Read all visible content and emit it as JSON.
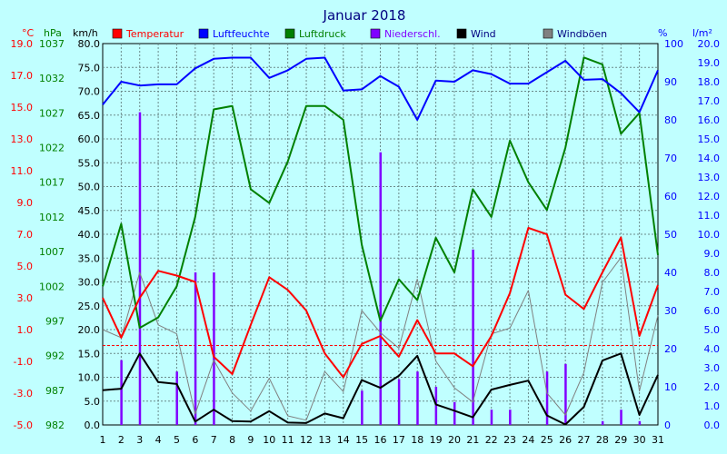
{
  "chart_data": {
    "type": "line",
    "title": "Januar 2018",
    "x": [
      1,
      2,
      3,
      4,
      5,
      6,
      7,
      8,
      9,
      10,
      11,
      12,
      13,
      14,
      15,
      16,
      17,
      18,
      19,
      20,
      21,
      22,
      23,
      24,
      25,
      26,
      27,
      28,
      29,
      30,
      31
    ],
    "axes": {
      "temp": {
        "unit": "°C",
        "ticks": [
          "19.0",
          "17.0",
          "15.0",
          "13.0",
          "11.0",
          "9.0",
          "7.0",
          "5.0",
          "3.0",
          "1.0",
          "-1.0",
          "-3.0",
          "-5.0"
        ],
        "color": "#ff0000"
      },
      "pressure": {
        "unit": "hPa",
        "ticks": [
          "1037",
          "1032",
          "1027",
          "1022",
          "1017",
          "1012",
          "1007",
          "1002",
          "997",
          "992",
          "987",
          "982"
        ],
        "color": "#008000"
      },
      "wind": {
        "unit": "km/h",
        "ticks": [
          "80.0",
          "75.0",
          "70.0",
          "65.0",
          "60.0",
          "55.0",
          "50.0",
          "45.0",
          "40.0",
          "35.0",
          "30.0",
          "25.0",
          "20.0",
          "15.0",
          "10.0",
          "5.0",
          "0.0"
        ],
        "ylim": [
          0,
          80
        ]
      },
      "humidity": {
        "unit": "%",
        "ticks": [
          "100",
          "90",
          "80",
          "70",
          "60",
          "50",
          "40",
          "30",
          "20",
          "10",
          "0"
        ],
        "color": "#0000ff"
      },
      "precip": {
        "unit": "l/m²",
        "ticks": [
          "20.0",
          "19.0",
          "18.0",
          "17.0",
          "16.0",
          "15.0",
          "14.0",
          "13.0",
          "12.0",
          "11.0",
          "10.0",
          "9.0",
          "8.0",
          "7.0",
          "6.0",
          "5.0",
          "4.0",
          "3.0",
          "2.0",
          "1.0",
          "0.0"
        ],
        "color": "#0000ff"
      }
    },
    "series": [
      {
        "key": "temp",
        "name": "Temperatur",
        "color": "#ff0000",
        "values": [
          3.0,
          0.5,
          3.0,
          4.7,
          4.4,
          4.0,
          -0.7,
          -1.8,
          1.3,
          4.3,
          3.5,
          2.2,
          -0.5,
          -2.0,
          0.1,
          0.6,
          -0.7,
          1.6,
          -0.5,
          -0.5,
          -1.3,
          0.6,
          3.3,
          7.4,
          7.0,
          3.2,
          2.3,
          4.6,
          6.8,
          0.6,
          3.8
        ]
      },
      {
        "key": "humidity",
        "name": "Luftfeuchte",
        "color": "#0000ff",
        "values": [
          84,
          90,
          89,
          89.3,
          89.3,
          93.5,
          96,
          96.3,
          96.3,
          91,
          93,
          96,
          96.3,
          87.7,
          88,
          91.5,
          88.7,
          80,
          90.3,
          90,
          93,
          92,
          89.5,
          89.5,
          92.5,
          95.5,
          90.5,
          90.7,
          87,
          82,
          93
        ]
      },
      {
        "key": "pressure",
        "name": "Luftdruck",
        "color": "#008000",
        "values": [
          1002,
          1011,
          996,
          997.5,
          1002,
          1012,
          1027.5,
          1028,
          1016,
          1014,
          1020,
          1028,
          1028,
          1026,
          1008,
          997,
          1003,
          1000,
          1009,
          1004,
          1016,
          1012,
          1023,
          1017,
          1013,
          1022,
          1035,
          1034,
          1024,
          1027,
          1006.5
        ]
      },
      {
        "key": "precip",
        "name": "Niederschl.",
        "color": "#8000ff",
        "values": [
          0,
          3.4,
          16.4,
          0,
          2.8,
          8.0,
          8.0,
          0,
          0,
          0,
          0,
          0,
          0,
          0,
          1.8,
          14.3,
          2.4,
          2.8,
          2.0,
          1.2,
          9.2,
          0.8,
          0.8,
          0,
          2.8,
          3.2,
          0,
          0.2,
          0.8,
          0.2,
          0
        ]
      },
      {
        "key": "wind",
        "name": "Wind",
        "color": "#000000",
        "values": [
          7.3,
          7.6,
          15.0,
          9.0,
          8.6,
          0.7,
          3.2,
          0.8,
          0.7,
          2.9,
          0.5,
          0.4,
          2.4,
          1.4,
          9.4,
          7.8,
          10.3,
          14.5,
          4.3,
          3.0,
          1.6,
          7.4,
          8.4,
          9.3,
          2.0,
          0.1,
          3.8,
          13.5,
          15.0,
          2.1,
          10.5
        ]
      },
      {
        "key": "gust",
        "name": "Windböen",
        "color": "#808080",
        "values": [
          20.0,
          18.3,
          32.0,
          21.0,
          19.1,
          2.3,
          13.6,
          6.7,
          2.9,
          9.8,
          1.9,
          1.0,
          11.2,
          7.0,
          24.0,
          19.4,
          16.1,
          30.6,
          13.4,
          7.8,
          4.8,
          19.1,
          20.3,
          28.2,
          6.7,
          2.1,
          11.0,
          29.9,
          35.1,
          7.1,
          23.0
        ]
      }
    ],
    "reference_line_temp": 0.0,
    "legend_placement": "top",
    "grid": true
  }
}
